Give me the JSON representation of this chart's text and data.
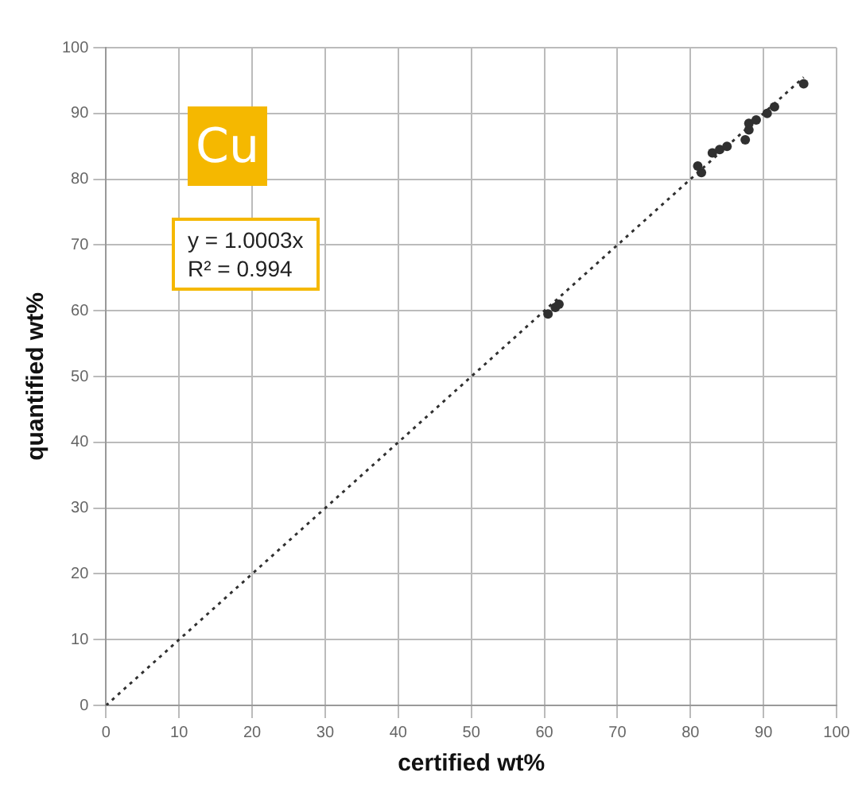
{
  "chart_data": {
    "type": "scatter",
    "xlabel": "certified wt%",
    "ylabel": "quantified wt%",
    "xlim": [
      0,
      100
    ],
    "ylim": [
      0,
      100
    ],
    "xticks": [
      0,
      10,
      20,
      30,
      40,
      50,
      60,
      70,
      80,
      90,
      100
    ],
    "yticks": [
      0,
      10,
      20,
      30,
      40,
      50,
      60,
      70,
      80,
      90,
      100
    ],
    "grid": true,
    "legend": false,
    "marker": "circle",
    "annotations": [
      "Cu",
      "y = 1.0003x",
      "R² = 0.994"
    ],
    "series": [
      {
        "color": "#303030",
        "x": [
          60.5,
          61.5,
          62,
          81,
          81.5,
          83,
          84,
          85,
          87.5,
          88,
          88,
          89,
          90.5,
          91.5,
          95.5
        ],
        "values": [
          59.5,
          60.5,
          61,
          82,
          81,
          84,
          84.5,
          85,
          86,
          87.5,
          88.5,
          89,
          90,
          91,
          94.5
        ]
      },
      {
        "type": "line",
        "color": "#303030",
        "line_style": "dotted",
        "marker": "none",
        "x": [
          0,
          95.5
        ],
        "values": [
          0,
          95.5
        ]
      }
    ]
  }
}
